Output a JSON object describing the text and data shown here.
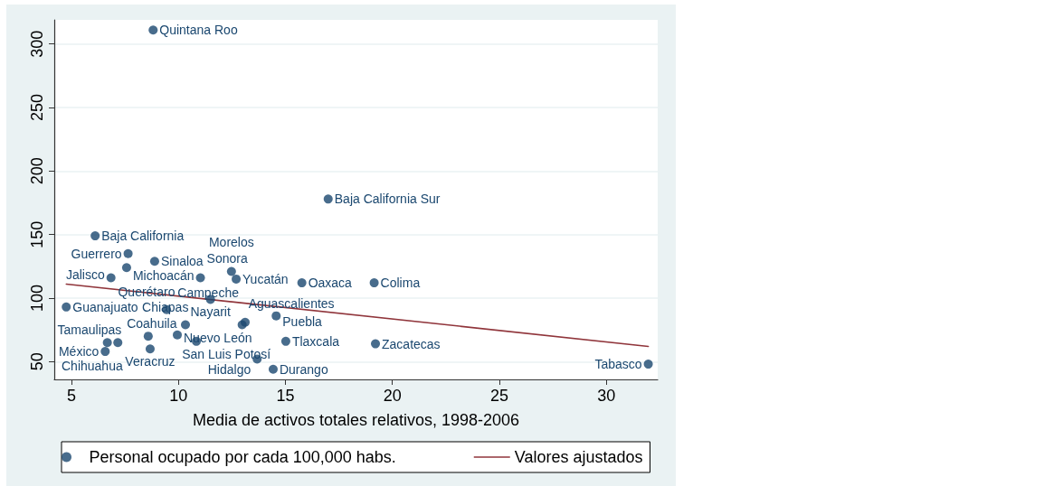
{
  "chart_data": {
    "type": "scatter",
    "xlabel": "Media de activos totales relativos, 1998-2006",
    "xlim": [
      4.2,
      32.4
    ],
    "xticks": [
      5,
      10,
      15,
      20,
      25,
      30
    ],
    "ylim": [
      36,
      319
    ],
    "yticks": [
      50,
      100,
      150,
      200,
      250,
      300
    ],
    "grid": "y",
    "legend": "bottom",
    "marker": "circle",
    "series": [
      {
        "name": "Personal ocupado por cada 100,000 habs.",
        "type": "scatter",
        "color": "#1a476f",
        "x": [
          8.82,
          17.0,
          6.11,
          7.65,
          8.89,
          7.58,
          12.48,
          6.85,
          11.03,
          12.7,
          15.77,
          19.15,
          11.5,
          4.76,
          9.45,
          14.57,
          13.12,
          12.98,
          10.33,
          9.95,
          8.59,
          10.84,
          15.02,
          6.68,
          7.17,
          19.21,
          8.68,
          6.58,
          13.68,
          31.96,
          14.43
        ],
        "values": [
          311,
          178,
          149,
          135,
          129,
          124,
          121,
          116,
          116,
          115,
          112,
          112,
          99,
          93,
          91,
          86,
          81,
          79,
          79,
          71,
          70,
          66,
          66,
          65,
          65,
          64,
          60,
          58,
          52,
          48,
          44
        ]
      },
      {
        "name": "Valores ajustados",
        "type": "line",
        "color": "#90353b",
        "marker": "none",
        "x": [
          4.76,
          31.96
        ],
        "values": [
          111,
          62
        ]
      }
    ],
    "annotations": [
      {
        "text": "Quintana Roo",
        "x": 8.82,
        "y": 311
      },
      {
        "text": "Baja California Sur",
        "x": 17.0,
        "y": 178
      },
      {
        "text": "Baja California",
        "x": 6.11,
        "y": 149
      },
      {
        "text": "Guerrero",
        "x": 7.65,
        "y": 135
      },
      {
        "text": "Sinaloa",
        "x": 8.89,
        "y": 129
      },
      {
        "text": "Michoacán",
        "x": 7.58,
        "y": 124
      },
      {
        "text": "Morelos",
        "x": 12.48,
        "y": 121
      },
      {
        "text": "Jalisco",
        "x": 6.85,
        "y": 116
      },
      {
        "text": "Sonora",
        "x": 11.03,
        "y": 116
      },
      {
        "text": "Yucatán",
        "x": 12.7,
        "y": 115
      },
      {
        "text": "Oaxaca",
        "x": 15.77,
        "y": 112
      },
      {
        "text": "Colima",
        "x": 19.15,
        "y": 112
      },
      {
        "text": "Nayarit",
        "x": 11.5,
        "y": 99
      },
      {
        "text": "Guanajuato",
        "x": 4.76,
        "y": 93
      },
      {
        "text": "Querétaro",
        "x": 9.45,
        "y": 91
      },
      {
        "text": "Puebla",
        "x": 14.57,
        "y": 86
      },
      {
        "text": "Campeche",
        "x": 13.12,
        "y": 81
      },
      {
        "text": "Aguascalientes",
        "x": 12.98,
        "y": 79
      },
      {
        "text": "Chiapas",
        "x": 10.33,
        "y": 79
      },
      {
        "text": "Nuevo León",
        "x": 9.95,
        "y": 71
      },
      {
        "text": "Coahuila",
        "x": 8.59,
        "y": 70
      },
      {
        "text": "San Luis Potosí",
        "x": 10.84,
        "y": 66
      },
      {
        "text": "Tlaxcala",
        "x": 15.02,
        "y": 66
      },
      {
        "text": "Tamaulipas",
        "x": 6.68,
        "y": 65
      },
      {
        "text": "Chihuahua",
        "x": 7.17,
        "y": 65
      },
      {
        "text": "Zacatecas",
        "x": 19.21,
        "y": 64
      },
      {
        "text": "Veracruz",
        "x": 8.68,
        "y": 60
      },
      {
        "text": "México",
        "x": 6.58,
        "y": 58
      },
      {
        "text": "Hidalgo",
        "x": 13.68,
        "y": 52
      },
      {
        "text": "Tabasco",
        "x": 31.96,
        "y": 48
      },
      {
        "text": "Durango",
        "x": 14.43,
        "y": 44
      }
    ]
  }
}
